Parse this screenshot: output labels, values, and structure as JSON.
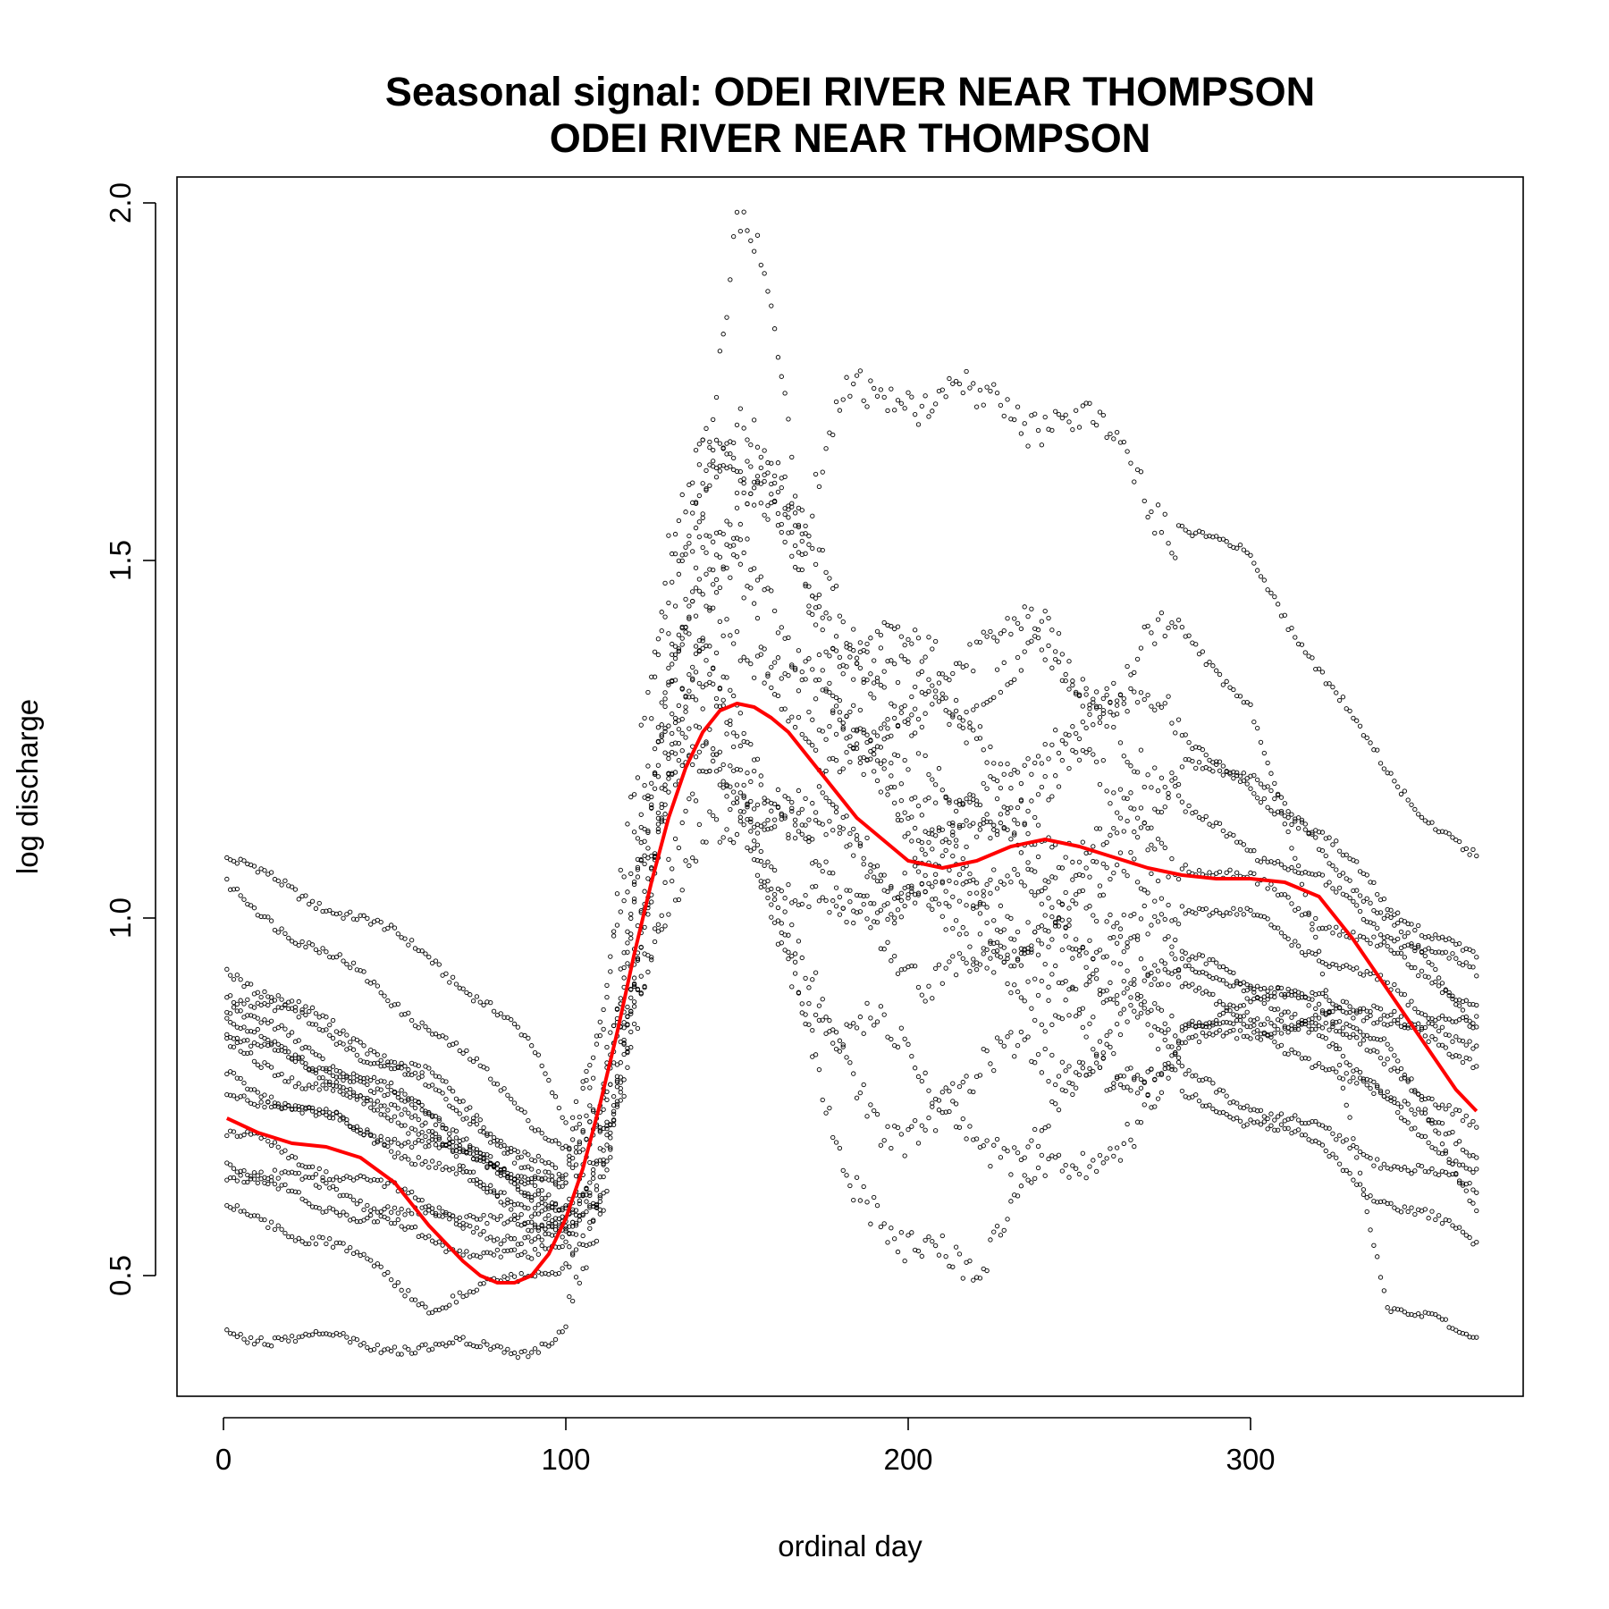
{
  "chart_data": {
    "type": "scatter",
    "title": "Seasonal signal: ODEI RIVER NEAR THOMPSON",
    "subtitle": "ODEI RIVER NEAR THOMPSON",
    "xlabel": "ordinal day",
    "ylabel": "log discharge",
    "xlim": [
      0,
      366
    ],
    "ylim": [
      0.35,
      2.02
    ],
    "x_ticks": [
      {
        "value": 0,
        "label": "0"
      },
      {
        "value": 100,
        "label": "100"
      },
      {
        "value": 200,
        "label": "200"
      },
      {
        "value": 300,
        "label": "300"
      }
    ],
    "y_ticks": [
      {
        "value": 0.5,
        "label": "0.5"
      },
      {
        "value": 1.0,
        "label": "1.0"
      },
      {
        "value": 1.5,
        "label": "1.5"
      },
      {
        "value": 2.0,
        "label": "2.0"
      }
    ],
    "grid": false,
    "series": [
      {
        "marker": "open-circle",
        "color": "#000000",
        "description_of_years": "daily log discharge, one trace per year",
        "yearly_traces": [
          {
            "day": [
              1,
              30,
              60,
              90,
              100,
              110,
              120,
              130,
              140,
              150,
              160,
              170,
              180,
              200,
              220,
              240,
              260,
              280,
              300,
              320,
              340,
              366
            ],
            "value": [
              1.08,
              1.02,
              0.95,
              0.82,
              0.72,
              0.85,
              1.15,
              1.45,
              1.65,
              1.7,
              1.6,
              1.5,
              1.4,
              1.35,
              1.4,
              1.38,
              1.32,
              1.25,
              1.2,
              1.1,
              1.0,
              0.85
            ]
          },
          {
            "day": [
              1,
              30,
              60,
              90,
              100,
              110,
              120,
              130,
              140,
              150,
              160,
              170,
              180,
              200,
              220,
              240,
              260,
              280,
              300,
              320,
              340,
              366
            ],
            "value": [
              1.04,
              0.95,
              0.85,
              0.72,
              0.68,
              0.8,
              1.1,
              1.35,
              1.5,
              1.45,
              1.35,
              1.28,
              1.2,
              1.15,
              1.1,
              1.08,
              1.05,
              1.02,
              1.0,
              0.95,
              0.9,
              0.82
            ]
          },
          {
            "day": [
              1,
              30,
              60,
              90,
              100,
              110,
              120,
              130,
              140,
              150,
              160,
              170,
              180,
              200,
              220,
              240,
              260,
              280,
              300,
              320,
              340,
              366
            ],
            "value": [
              0.93,
              0.85,
              0.78,
              0.65,
              0.62,
              0.72,
              0.95,
              1.25,
              1.35,
              1.28,
              1.2,
              1.15,
              1.1,
              1.05,
              1.02,
              1.0,
              0.98,
              0.95,
              0.9,
              0.85,
              0.8,
              0.7
            ]
          },
          {
            "day": [
              1,
              30,
              60,
              90,
              100,
              110,
              120,
              130,
              140,
              150,
              160,
              170,
              180,
              200,
              220,
              240,
              260,
              280,
              300,
              320,
              340,
              366
            ],
            "value": [
              0.88,
              0.8,
              0.72,
              0.62,
              0.58,
              0.65,
              0.9,
              1.15,
              1.25,
              1.2,
              1.12,
              1.08,
              1.05,
              1.0,
              0.98,
              0.95,
              0.92,
              0.9,
              0.87,
              0.83,
              0.76,
              0.66
            ]
          },
          {
            "day": [
              1,
              30,
              60,
              90,
              100,
              110,
              120,
              130,
              140,
              150,
              160,
              170,
              180,
              200,
              220,
              240,
              260,
              280,
              300,
              320,
              340,
              366
            ],
            "value": [
              0.85,
              0.79,
              0.74,
              0.6,
              0.6,
              0.7,
              1.0,
              1.3,
              1.62,
              1.97,
              1.85,
              1.5,
              1.3,
              1.1,
              1.05,
              1.02,
              0.98,
              0.94,
              0.9,
              0.88,
              0.82,
              0.6
            ]
          },
          {
            "day": [
              1,
              30,
              60,
              90,
              100,
              110,
              120,
              130,
              140,
              150,
              160,
              170,
              180,
              200,
              220,
              240,
              260,
              280,
              300,
              320,
              340,
              366
            ],
            "value": [
              0.78,
              0.72,
              0.66,
              0.58,
              0.56,
              0.62,
              0.85,
              1.1,
              1.2,
              1.15,
              1.1,
              1.05,
              1.0,
              0.95,
              0.92,
              0.9,
              0.88,
              0.86,
              0.84,
              0.8,
              0.74,
              0.64
            ]
          },
          {
            "day": [
              1,
              30,
              60,
              90,
              100,
              110,
              120,
              130,
              140,
              150,
              160,
              170,
              180,
              200,
              220,
              240,
              260,
              280,
              300,
              320,
              340,
              366
            ],
            "value": [
              0.66,
              0.62,
              0.58,
              0.55,
              0.55,
              0.6,
              0.9,
              1.2,
              1.35,
              1.25,
              1.05,
              0.9,
              0.8,
              0.7,
              0.68,
              0.72,
              0.78,
              0.82,
              0.84,
              0.86,
              0.86,
              0.85
            ]
          },
          {
            "day": [
              1,
              30,
              60,
              90,
              100,
              110,
              120,
              130,
              140,
              150,
              160,
              170,
              180,
              200,
              220,
              240,
              260,
              280,
              300,
              320,
              340,
              366
            ],
            "value": [
              0.64,
              0.6,
              0.55,
              0.52,
              0.55,
              0.65,
              0.95,
              1.15,
              1.3,
              1.2,
              1.0,
              0.85,
              0.7,
              0.5,
              0.55,
              0.62,
              0.7,
              0.75,
              0.72,
              0.68,
              0.6,
              0.55
            ]
          },
          {
            "day": [
              1,
              30,
              60,
              90,
              100,
              110,
              120,
              130,
              140,
              150,
              160,
              170,
              180,
              200,
              220,
              240,
              260,
              280,
              300,
              320,
              340,
              366
            ],
            "value": [
              0.59,
              0.55,
              0.46,
              0.5,
              0.52,
              0.58,
              0.85,
              1.05,
              1.15,
              1.1,
              1.0,
              0.9,
              0.85,
              0.8,
              0.78,
              0.8,
              0.82,
              0.85,
              0.88,
              0.9,
              0.86,
              0.8
            ]
          },
          {
            "day": [
              1,
              30,
              60,
              90,
              100,
              110,
              120,
              130,
              140,
              150,
              160,
              170,
              180,
              200,
              220,
              240,
              260,
              280,
              300,
              320,
              340,
              366
            ],
            "value": [
              0.42,
              0.41,
              0.4,
              0.4,
              0.42,
              0.55,
              0.95,
              1.4,
              1.62,
              1.6,
              1.6,
              1.55,
              1.7,
              1.75,
              1.7,
              1.72,
              1.65,
              1.55,
              1.5,
              1.35,
              1.2,
              1.08
            ]
          },
          {
            "day": [
              1,
              30,
              60,
              90,
              100,
              110,
              120,
              130,
              140,
              150,
              160,
              170,
              180,
              200,
              220,
              240,
              260,
              280,
              300,
              320,
              340,
              366
            ],
            "value": [
              0.9,
              0.84,
              0.76,
              0.66,
              0.63,
              0.75,
              1.05,
              1.3,
              1.45,
              1.42,
              1.35,
              1.32,
              1.3,
              1.28,
              1.25,
              1.22,
              1.2,
              1.15,
              1.1,
              1.05,
              0.98,
              0.92
            ]
          },
          {
            "day": [
              1,
              30,
              60,
              90,
              100,
              110,
              120,
              130,
              140,
              150,
              160,
              170,
              180,
              200,
              220,
              240,
              260,
              280,
              300,
              320,
              340,
              366
            ],
            "value": [
              0.7,
              0.65,
              0.6,
              0.56,
              0.58,
              0.68,
              1.0,
              1.5,
              1.7,
              1.65,
              1.55,
              1.45,
              1.4,
              1.3,
              1.32,
              1.35,
              1.33,
              1.4,
              1.3,
              0.95,
              0.45,
              0.42
            ]
          },
          {
            "day": [
              1,
              30,
              60,
              90,
              100,
              110,
              120,
              130,
              140,
              150,
              160,
              170,
              180,
              200,
              220,
              240,
              260,
              280,
              300,
              320,
              340,
              366
            ],
            "value": [
              0.82,
              0.76,
              0.7,
              0.62,
              0.6,
              0.72,
              1.0,
              1.35,
              1.55,
              1.5,
              1.45,
              1.35,
              1.25,
              1.2,
              1.15,
              1.12,
              1.1,
              1.08,
              1.05,
              1.0,
              0.95,
              0.88
            ]
          },
          {
            "day": [
              1,
              30,
              60,
              90,
              100,
              110,
              120,
              130,
              140,
              150,
              160,
              170,
              180,
              200,
              220,
              240,
              260,
              280,
              300,
              320,
              340,
              366
            ],
            "value": [
              0.76,
              0.72,
              0.68,
              0.64,
              0.62,
              0.7,
              0.95,
              1.2,
              1.3,
              1.25,
              1.18,
              1.12,
              1.1,
              1.08,
              1.12,
              1.2,
              1.25,
              1.22,
              1.18,
              1.12,
              1.02,
              0.94
            ]
          },
          {
            "day": [
              1,
              30,
              60,
              90,
              100,
              110,
              120,
              130,
              140,
              150,
              160,
              170,
              180,
              200,
              220,
              240,
              260,
              280,
              300,
              320,
              340,
              366
            ],
            "value": [
              0.84,
              0.78,
              0.7,
              0.58,
              0.57,
              0.66,
              0.92,
              1.18,
              1.4,
              1.6,
              1.62,
              1.5,
              1.45,
              1.25,
              1.05,
              0.9,
              0.82,
              0.78,
              0.74,
              0.7,
              0.66,
              0.62
            ]
          }
        ]
      },
      {
        "name": "",
        "marker": "line",
        "color": "#ff0000",
        "description_of_line": "smoothed seasonal signal",
        "x": [
          1,
          10,
          20,
          30,
          40,
          50,
          60,
          70,
          75,
          80,
          85,
          90,
          95,
          100,
          105,
          110,
          115,
          120,
          125,
          130,
          135,
          140,
          145,
          150,
          155,
          160,
          165,
          170,
          175,
          180,
          185,
          190,
          200,
          210,
          220,
          230,
          240,
          250,
          260,
          270,
          280,
          290,
          300,
          310,
          320,
          330,
          340,
          350,
          360,
          366
        ],
        "y": [
          0.72,
          0.7,
          0.685,
          0.68,
          0.665,
          0.63,
          0.57,
          0.52,
          0.5,
          0.49,
          0.49,
          0.5,
          0.53,
          0.58,
          0.65,
          0.74,
          0.84,
          0.95,
          1.05,
          1.14,
          1.21,
          1.26,
          1.29,
          1.3,
          1.295,
          1.28,
          1.26,
          1.23,
          1.2,
          1.17,
          1.14,
          1.12,
          1.08,
          1.07,
          1.08,
          1.1,
          1.11,
          1.1,
          1.085,
          1.07,
          1.06,
          1.055,
          1.055,
          1.05,
          1.03,
          0.97,
          0.9,
          0.83,
          0.76,
          0.73
        ]
      }
    ]
  }
}
